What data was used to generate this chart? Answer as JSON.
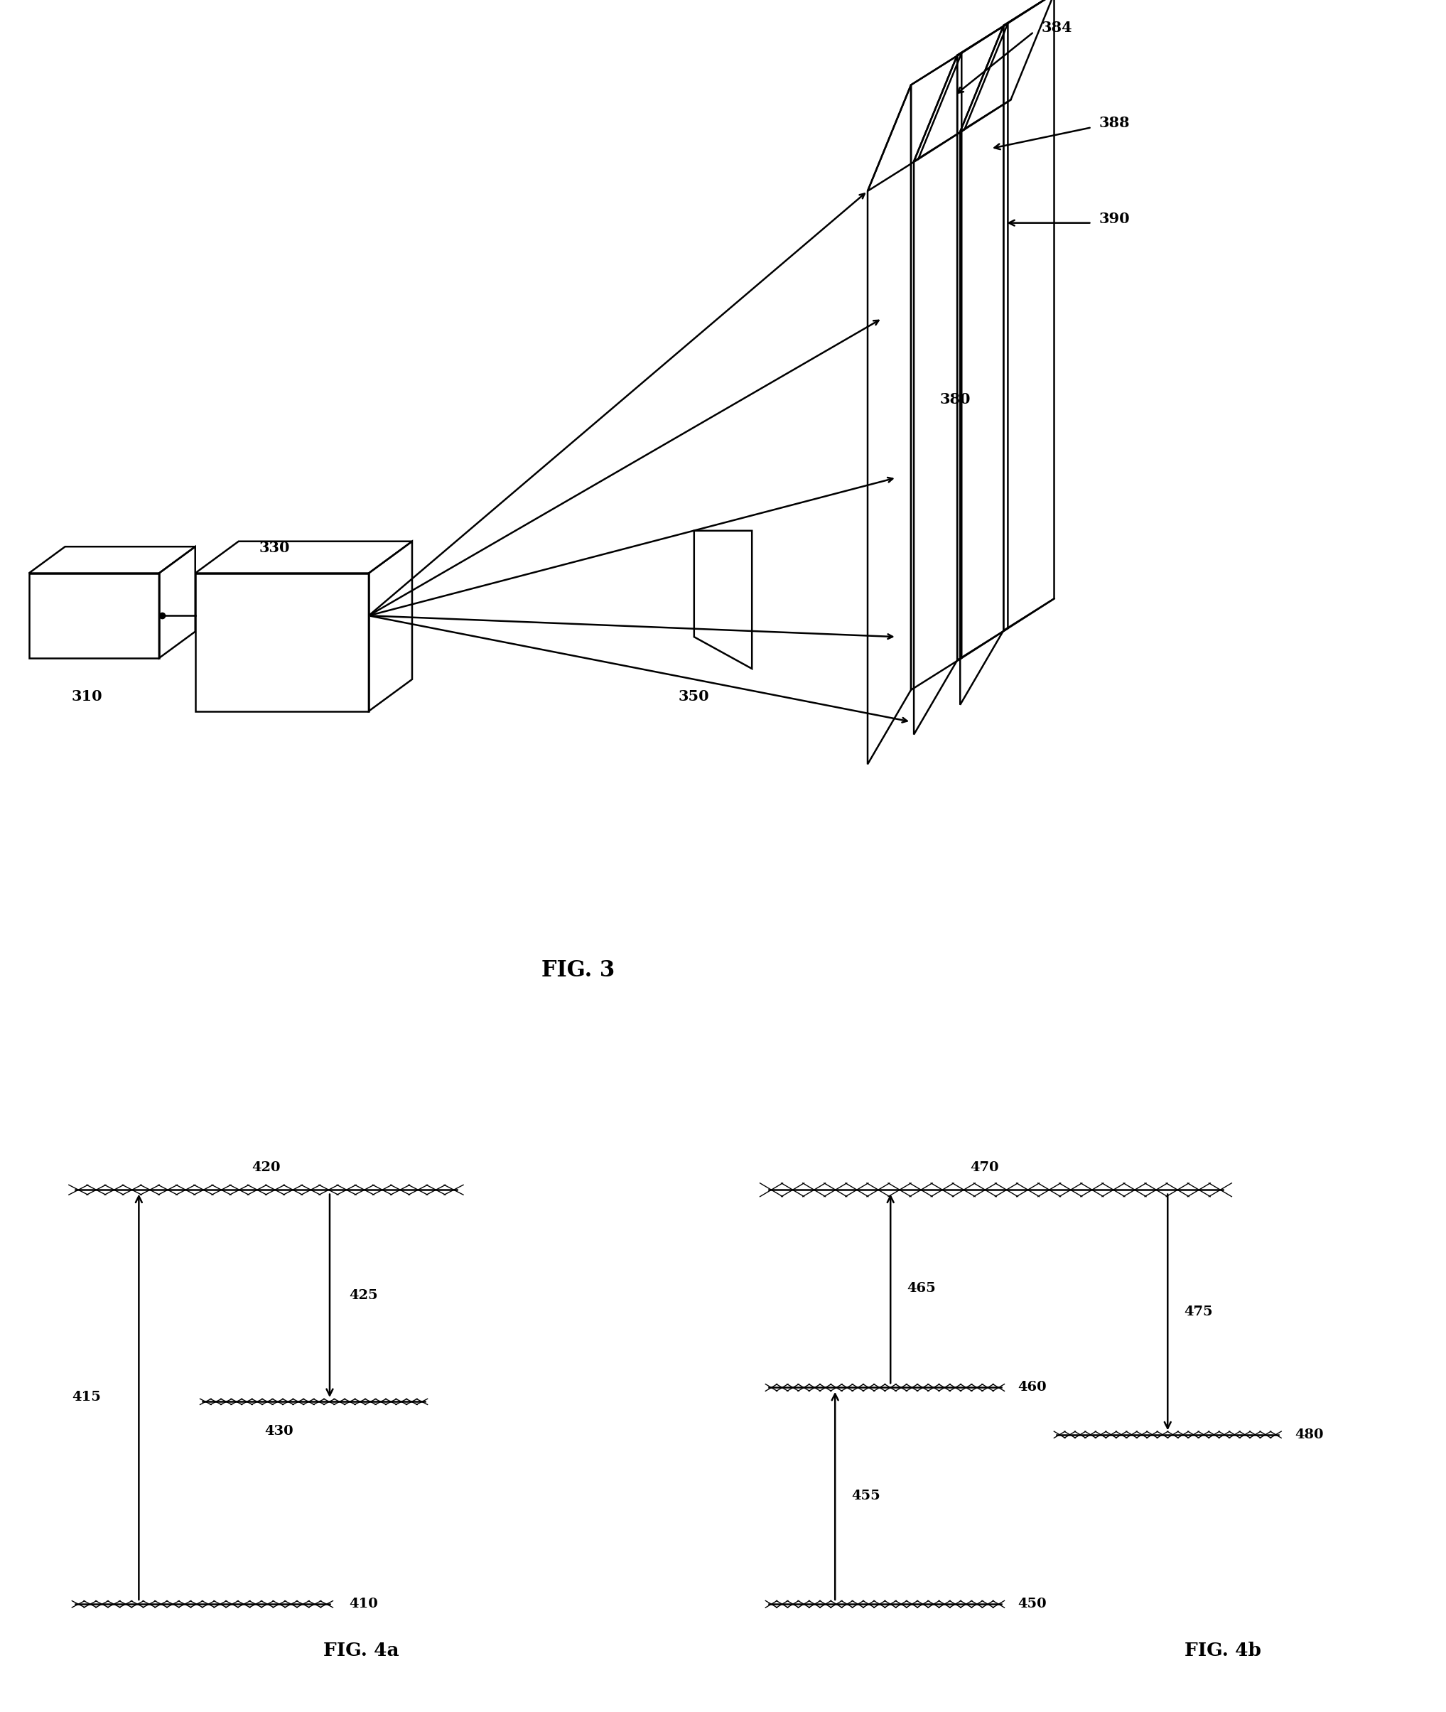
{
  "bg_color": "#ffffff",
  "fig_width": 20.35,
  "fig_height": 24.09,
  "fig3_caption": "FIG. 3",
  "fig4a_caption": "FIG. 4a",
  "fig4b_caption": "FIG. 4b",
  "lw": 1.8,
  "lc": "#000000"
}
